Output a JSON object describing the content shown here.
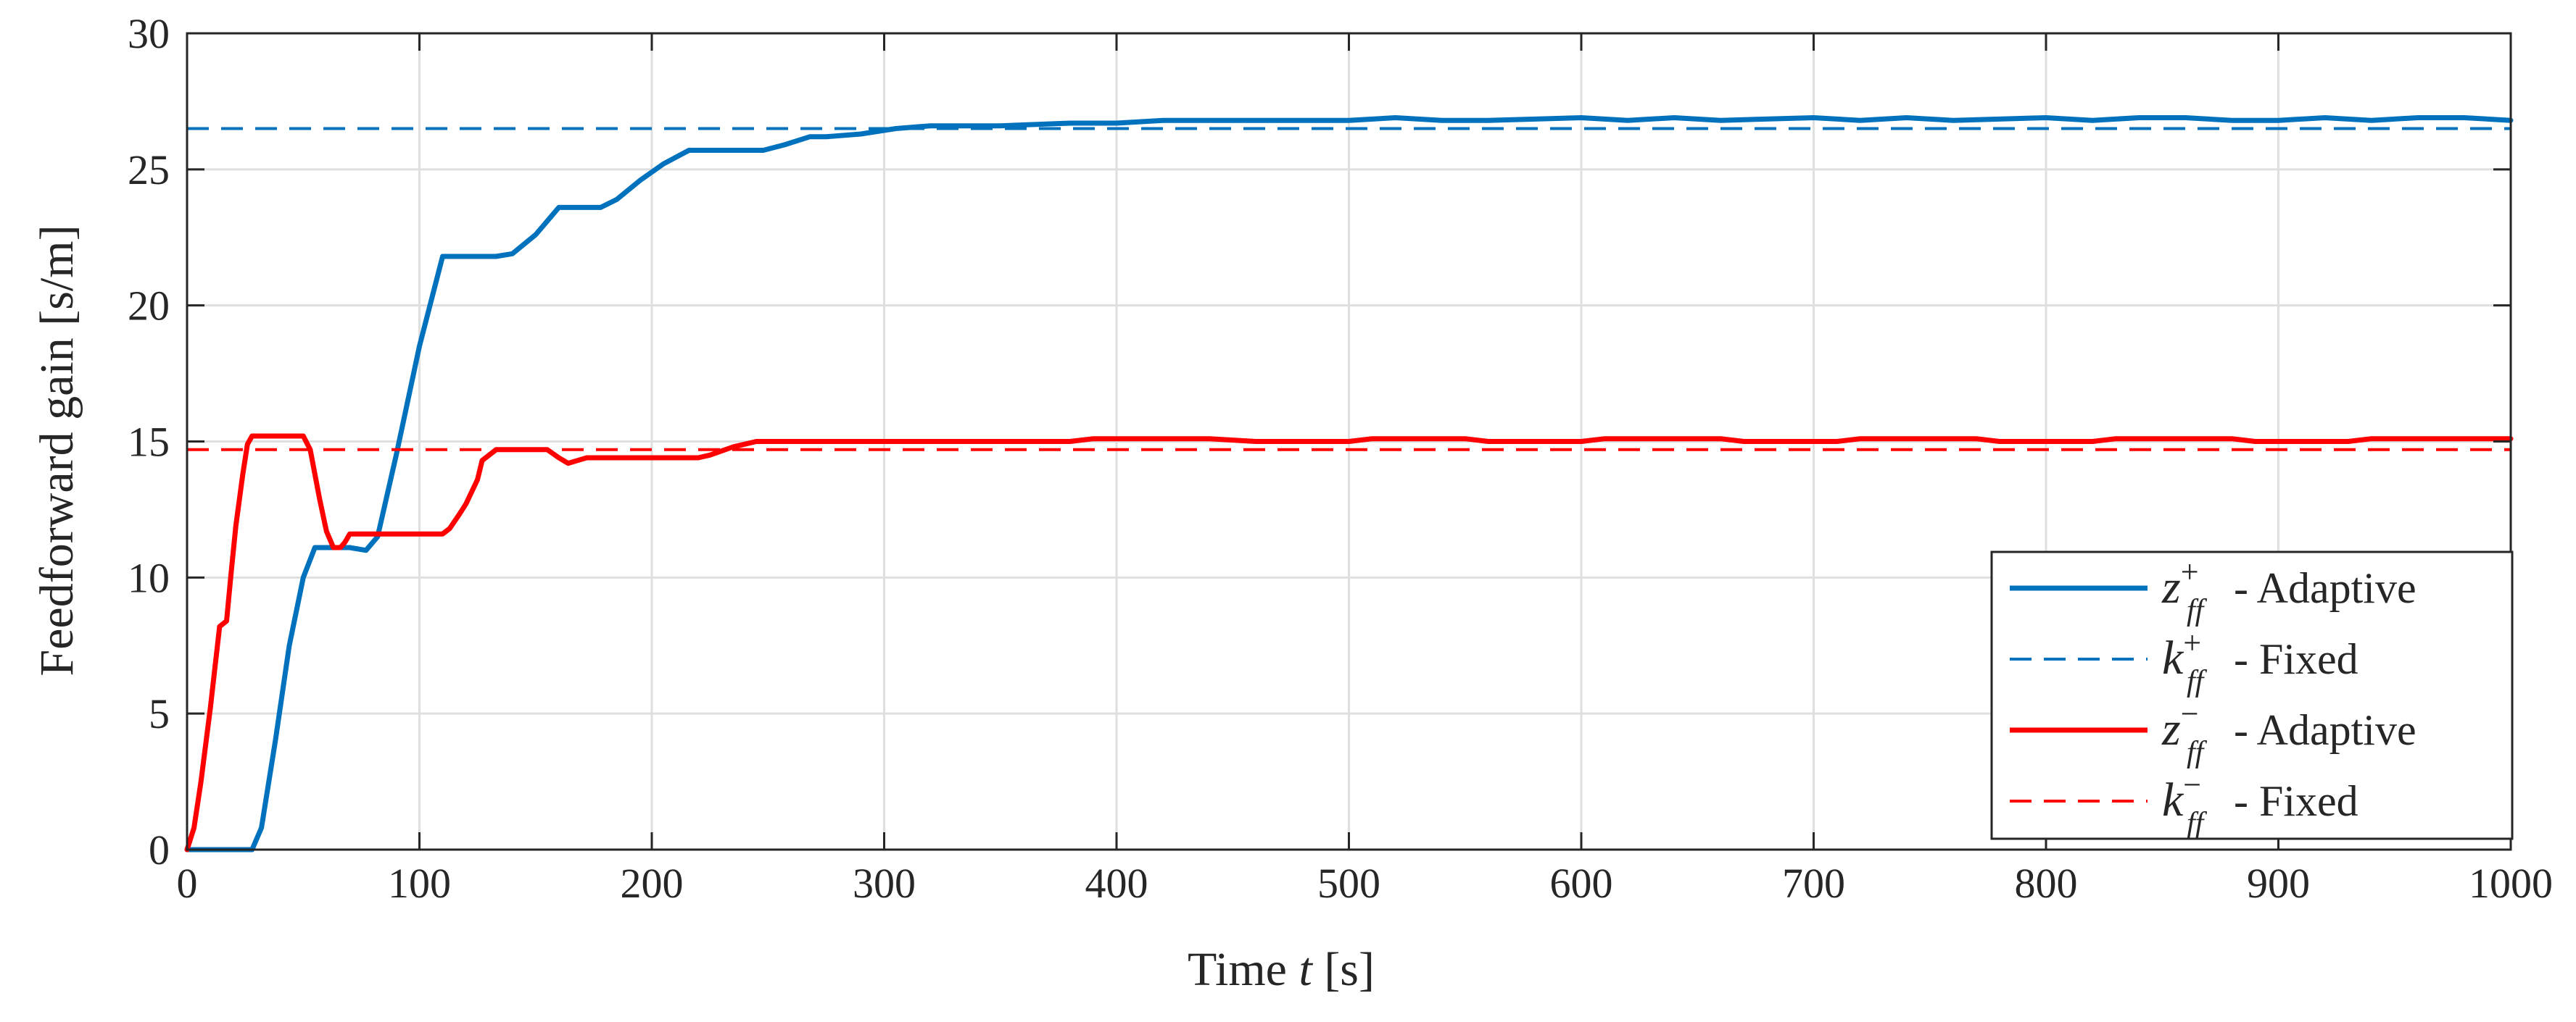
{
  "chart_data": {
    "type": "line",
    "title": "",
    "xlabel": "Time t [s]",
    "xlabel_parts": [
      "Time",
      "t",
      "[s]"
    ],
    "ylabel": "Feedforward gain [s/m]",
    "xlim": [
      0,
      1000
    ],
    "ylim": [
      0,
      30
    ],
    "xticks": [
      0,
      100,
      200,
      300,
      400,
      500,
      600,
      700,
      800,
      900,
      1000
    ],
    "yticks": [
      0,
      5,
      10,
      15,
      20,
      25,
      30
    ],
    "grid": true,
    "legend_position": "bottom-right",
    "series": [
      {
        "name": "z_ff^+ - Adaptive",
        "legend": {
          "symbol": "z",
          "sub": "ff",
          "sup": "+",
          "text": " - Adaptive"
        },
        "color": "#0072bd",
        "style": "solid",
        "x": [
          0,
          28,
          32,
          38,
          44,
          50,
          55,
          65,
          70,
          77,
          82,
          90,
          100,
          110,
          133,
          140,
          150,
          160,
          178,
          185,
          195,
          205,
          216,
          248,
          257,
          268,
          275,
          290,
          305,
          320,
          332,
          350,
          380,
          400,
          420,
          460,
          480,
          500,
          520,
          540,
          560,
          600,
          620,
          640,
          660,
          700,
          720,
          740,
          760,
          800,
          820,
          840,
          860,
          880,
          900,
          920,
          940,
          960,
          980,
          1000
        ],
        "y": [
          0,
          0,
          0.8,
          4.0,
          7.5,
          10.0,
          11.1,
          11.1,
          11.1,
          11.0,
          11.5,
          14.5,
          18.5,
          21.8,
          21.8,
          21.9,
          22.6,
          23.6,
          23.6,
          23.9,
          24.6,
          25.2,
          25.7,
          25.7,
          25.9,
          26.2,
          26.2,
          26.3,
          26.5,
          26.6,
          26.6,
          26.6,
          26.7,
          26.7,
          26.8,
          26.8,
          26.8,
          26.8,
          26.9,
          26.8,
          26.8,
          26.9,
          26.8,
          26.9,
          26.8,
          26.9,
          26.8,
          26.9,
          26.8,
          26.9,
          26.8,
          26.9,
          26.9,
          26.8,
          26.8,
          26.9,
          26.8,
          26.9,
          26.9,
          26.8
        ]
      },
      {
        "name": "k_ff^+ - Fixed",
        "legend": {
          "symbol": "k",
          "sub": "ff",
          "sup": "+",
          "text": " - Fixed"
        },
        "color": "#0072bd",
        "style": "dashed",
        "x": [
          0,
          1000
        ],
        "y": [
          26.5,
          26.5
        ]
      },
      {
        "name": "z_ff^- - Adaptive",
        "legend": {
          "symbol": "z",
          "sub": "ff",
          "sup": "−",
          "text": " - Adaptive"
        },
        "color": "#ff0000",
        "style": "solid",
        "x": [
          0,
          3,
          6,
          10,
          14,
          17,
          19,
          21,
          24,
          26,
          28,
          50,
          53,
          57,
          60,
          63,
          66,
          68,
          70,
          72,
          76,
          110,
          113,
          117,
          120,
          125,
          127,
          133,
          155,
          160,
          164,
          168,
          172,
          176,
          180,
          220,
          225,
          235,
          245,
          260,
          280,
          300,
          320,
          350,
          380,
          390,
          440,
          460,
          500,
          510,
          550,
          560,
          600,
          610,
          660,
          670,
          710,
          720,
          770,
          780,
          820,
          830,
          880,
          890,
          930,
          940,
          990,
          1000
        ],
        "y": [
          0,
          0.8,
          2.5,
          5.2,
          8.2,
          8.4,
          10.2,
          11.9,
          13.8,
          14.9,
          15.2,
          15.2,
          14.7,
          12.9,
          11.7,
          11.1,
          11.1,
          11.3,
          11.6,
          11.6,
          11.6,
          11.6,
          11.8,
          12.3,
          12.7,
          13.6,
          14.3,
          14.7,
          14.7,
          14.4,
          14.2,
          14.3,
          14.4,
          14.4,
          14.4,
          14.4,
          14.5,
          14.8,
          15.0,
          15.0,
          15.0,
          15.0,
          15.0,
          15.0,
          15.0,
          15.1,
          15.1,
          15.0,
          15.0,
          15.1,
          15.1,
          15.0,
          15.0,
          15.1,
          15.1,
          15.0,
          15.0,
          15.1,
          15.1,
          15.0,
          15.0,
          15.1,
          15.1,
          15.0,
          15.0,
          15.1,
          15.1,
          15.1
        ]
      },
      {
        "name": "k_ff^- - Fixed",
        "legend": {
          "symbol": "k",
          "sub": "ff",
          "sup": "−",
          "text": " - Fixed"
        },
        "color": "#ff0000",
        "style": "dashed",
        "x": [
          0,
          1000
        ],
        "y": [
          14.7,
          14.7
        ]
      }
    ]
  }
}
